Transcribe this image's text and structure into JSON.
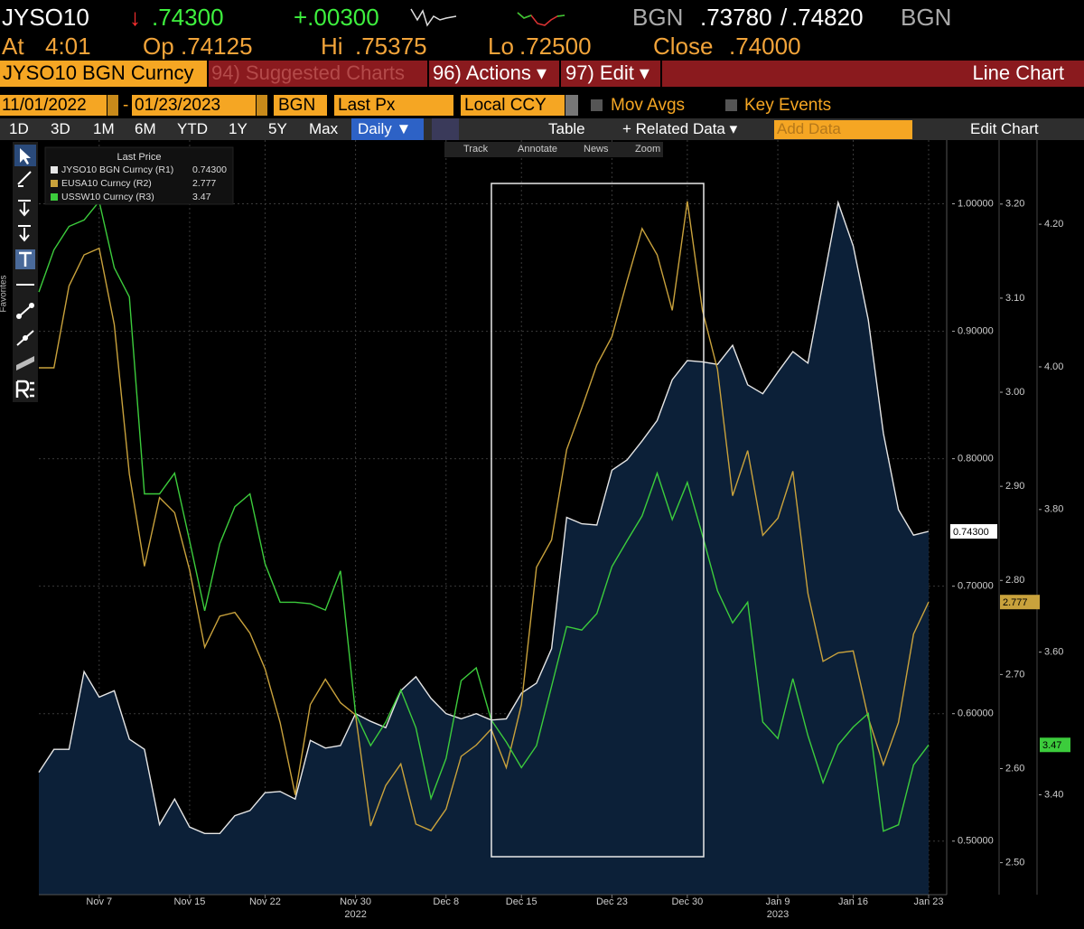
{
  "header": {
    "ticker": "JYSO10",
    "direction": "↓",
    "last": ".74300",
    "change": "+.00300",
    "bid_source": "BGN",
    "bid": ".73780",
    "separator": "/",
    "ask": ".74820",
    "ask_source": "BGN",
    "stats": [
      {
        "label": "At",
        "value": "4:01"
      },
      {
        "label": "Op",
        "value": ".74125"
      },
      {
        "label": "Hi",
        "value": ".75375"
      },
      {
        "label": "Lo",
        "value": ".72500"
      },
      {
        "label": "Close",
        "value": ".74000"
      }
    ]
  },
  "toolbar": {
    "security": "JYSO10 BGN Curncy",
    "menus": [
      "94) Suggested Charts",
      "96) Actions ▾",
      "97) Edit ▾"
    ],
    "chart_type": "Line Chart"
  },
  "controls": {
    "start_date": "11/01/2022",
    "date_separator": "-",
    "end_date": "01/23/2023",
    "source": "BGN",
    "field": "Last Px",
    "currency": "Local CCY",
    "checkboxes": [
      "Mov Avgs",
      "Key Events"
    ]
  },
  "periods": [
    "1D",
    "3D",
    "1M",
    "6M",
    "YTD",
    "1Y",
    "5Y",
    "Max"
  ],
  "frequency": "Daily ▼",
  "buttons": [
    "Table",
    "+ Related Data ▾"
  ],
  "add_data_placeholder": "Add Data",
  "edit_chart": "Edit Chart",
  "chart_tools": [
    "Track",
    "Annotate",
    "News",
    "Zoom"
  ],
  "sidebar_label": "Favorites",
  "chart_data": {
    "type": "line",
    "legend_title": "Last Price",
    "categories": [
      null,
      null,
      null,
      null,
      "Nov 7",
      null,
      null,
      null,
      null,
      null,
      "Nov 15",
      null,
      null,
      null,
      null,
      "Nov 22",
      null,
      null,
      null,
      null,
      null,
      "Nov 30",
      null,
      null,
      null,
      null,
      null,
      "Dec 8",
      null,
      null,
      null,
      null,
      "Dec 15",
      null,
      null,
      null,
      null,
      null,
      "Dec 23",
      null,
      null,
      null,
      null,
      "Dec 30",
      null,
      null,
      null,
      null,
      null,
      "Jan 9",
      null,
      null,
      null,
      null,
      "Jan 16",
      null,
      null,
      null,
      null,
      "Jan 23"
    ],
    "years": [
      "2022",
      "2023"
    ],
    "ylim": [
      0.458,
      1.05
    ],
    "yticks": [
      {
        "value": 0.5,
        "label": "0.50000"
      },
      {
        "value": 0.6,
        "label": "0.60000"
      },
      {
        "value": 0.7,
        "label": "0.70000"
      },
      {
        "value": 0.8,
        "label": "0.80000"
      },
      {
        "value": 0.9,
        "label": "0.90000"
      },
      {
        "value": 1,
        "label": "1.00000"
      }
    ],
    "y2lim": [
      2.466,
      3.268
    ],
    "y2ticks": [
      {
        "value": 2.5,
        "label": "2.50"
      },
      {
        "value": 2.6,
        "label": "2.60"
      },
      {
        "value": 2.7,
        "label": "2.70"
      },
      {
        "value": 2.8,
        "label": "2.80"
      },
      {
        "value": 2.9,
        "label": "2.90"
      },
      {
        "value": 3,
        "label": "3.00"
      },
      {
        "value": 3.1,
        "label": "3.10"
      },
      {
        "value": 3.2,
        "label": "3.20"
      }
    ],
    "y3lim": [
      3.26,
      4.318
    ],
    "y3ticks": [
      {
        "value": 3.4,
        "label": "3.40"
      },
      {
        "value": 3.6,
        "label": "3.60"
      },
      {
        "value": 3.8,
        "label": "3.80"
      },
      {
        "value": 4,
        "label": "4.00"
      },
      {
        "value": 4.2,
        "label": "4.20"
      }
    ],
    "grid": true,
    "series": [
      {
        "name": "JYSO10 BGN Curncy (R1)",
        "last_label": "0.74300",
        "color": "#e6e6e6",
        "area_color": "#0c2038",
        "axis": "y",
        "values": [
          0.554,
          0.572,
          0.572,
          0.633,
          0.613,
          0.618,
          0.58,
          0.572,
          0.513,
          0.533,
          0.511,
          0.506,
          0.506,
          0.52,
          0.524,
          0.538,
          0.539,
          0.533,
          0.579,
          0.573,
          0.575,
          0.6,
          0.594,
          0.589,
          0.618,
          0.629,
          0.612,
          0.6,
          0.596,
          0.6,
          0.595,
          0.596,
          0.616,
          0.624,
          0.651,
          0.754,
          0.749,
          0.748,
          0.791,
          0.799,
          0.814,
          0.83,
          0.862,
          0.877,
          0.876,
          0.874,
          0.889,
          0.858,
          0.851,
          0.868,
          0.884,
          0.875,
          0.938,
          1.001,
          0.967,
          0.909,
          0.82,
          0.76,
          0.74,
          0.743
        ]
      },
      {
        "name": "EUSA10 Curncy (R2)",
        "last_label": "2.777",
        "color": "#c9a23c",
        "axis": "y2",
        "values": [
          3.026,
          3.026,
          3.113,
          3.146,
          3.153,
          3.072,
          2.913,
          2.815,
          2.888,
          2.872,
          2.811,
          2.729,
          2.762,
          2.766,
          2.744,
          2.706,
          2.649,
          2.572,
          2.668,
          2.695,
          2.67,
          2.657,
          2.539,
          2.582,
          2.605,
          2.541,
          2.534,
          2.557,
          2.613,
          2.625,
          2.642,
          2.601,
          2.668,
          2.814,
          2.843,
          2.939,
          2.983,
          3.029,
          3.059,
          3.118,
          3.174,
          3.146,
          3.087,
          3.203,
          3.087,
          3.024,
          2.89,
          2.938,
          2.848,
          2.866,
          2.916,
          2.786,
          2.714,
          2.723,
          2.725,
          2.654,
          2.604,
          2.649,
          2.743,
          2.777
        ]
      },
      {
        "name": "USSW10 Curncy (R3)",
        "last_label": "3.47",
        "color": "#3ccc3c",
        "axis": "y3",
        "values": [
          4.105,
          4.164,
          4.197,
          4.206,
          4.232,
          4.139,
          4.098,
          3.822,
          3.822,
          3.851,
          3.756,
          3.658,
          3.752,
          3.804,
          3.822,
          3.724,
          3.67,
          3.67,
          3.668,
          3.659,
          3.714,
          3.514,
          3.469,
          3.502,
          3.547,
          3.494,
          3.395,
          3.451,
          3.56,
          3.578,
          3.505,
          3.474,
          3.438,
          3.469,
          3.552,
          3.636,
          3.631,
          3.654,
          3.72,
          3.756,
          3.791,
          3.851,
          3.786,
          3.838,
          3.764,
          3.686,
          3.641,
          3.67,
          3.502,
          3.479,
          3.563,
          3.483,
          3.417,
          3.47,
          3.495,
          3.514,
          3.349,
          3.358,
          3.442,
          3.47
        ]
      }
    ]
  }
}
